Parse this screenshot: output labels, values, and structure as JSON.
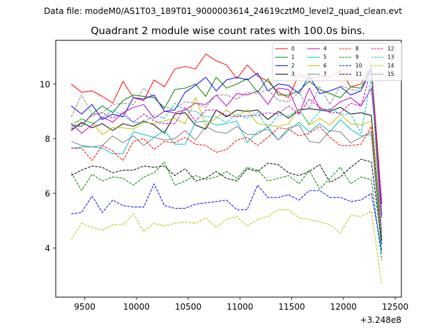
{
  "chart_data": {
    "type": "line",
    "suptitle": "Data file: modeM0/AS1T03_189T01_9000003614_24619cztM0_level2_quad_clean.evt",
    "title": "Quadrant 2 module wise count rates with 100.0s bins.",
    "xlabel": "",
    "ylabel": "",
    "x_offset_label": "+3.248e8",
    "xlim": [
      9220,
      12560
    ],
    "ylim": [
      2.2,
      11.6
    ],
    "xticks": [
      9500,
      10000,
      10500,
      11000,
      11500,
      12000,
      12500
    ],
    "yticks": [
      4,
      6,
      8,
      10
    ],
    "x": [
      9370,
      9470,
      9570,
      9670,
      9770,
      9870,
      9970,
      10070,
      10170,
      10270,
      10370,
      10470,
      10570,
      10670,
      10770,
      10870,
      10970,
      11070,
      11170,
      11270,
      11370,
      11470,
      11570,
      11670,
      11770,
      11870,
      11970,
      12070,
      12170,
      12270,
      12370
    ],
    "legend_position": "top-right",
    "series": [
      {
        "name": "0",
        "color": "#ff0000",
        "dash": "solid",
        "values": [
          10.0,
          9.7,
          9.75,
          9.55,
          9.3,
          10.1,
          9.5,
          9.4,
          10.15,
          9.9,
          10.55,
          10.65,
          10.55,
          11.1,
          10.85,
          10.7,
          10.2,
          10.7,
          10.3,
          10.1,
          9.7,
          9.5,
          10.35,
          10.2,
          10.3,
          10.25,
          10.5,
          9.9,
          10.0,
          10.7,
          5.6
        ]
      },
      {
        "name": "1",
        "color": "#008000",
        "dash": "solid",
        "values": [
          8.5,
          8.45,
          8.9,
          9.2,
          8.95,
          9.4,
          9.6,
          9.55,
          9.5,
          9.1,
          9.8,
          9.85,
          10.0,
          9.55,
          10.25,
          9.85,
          10.0,
          10.2,
          9.7,
          10.2,
          9.6,
          9.6,
          9.75,
          10.1,
          9.8,
          9.65,
          9.5,
          9.9,
          9.85,
          10.6,
          4.3
        ]
      },
      {
        "name": "2",
        "color": "#0000ff",
        "dash": "solid",
        "values": [
          9.2,
          8.9,
          9.25,
          8.7,
          8.9,
          8.8,
          9.5,
          9.45,
          9.6,
          9.0,
          9.05,
          9.7,
          9.95,
          10.25,
          9.75,
          10.15,
          10.25,
          10.15,
          10.4,
          9.75,
          10.0,
          9.95,
          9.65,
          10.3,
          9.65,
          9.75,
          9.9,
          9.6,
          9.75,
          10.55,
          5.2
        ]
      },
      {
        "name": "3",
        "color": "#000000",
        "dash": "solid",
        "values": [
          8.3,
          8.6,
          8.4,
          8.55,
          8.3,
          8.55,
          8.45,
          8.65,
          8.5,
          8.2,
          8.9,
          8.95,
          8.5,
          8.35,
          9.05,
          8.8,
          9.05,
          9.0,
          9.05,
          8.7,
          9.0,
          8.75,
          9.05,
          9.1,
          9.05,
          9.0,
          9.15,
          8.9,
          8.95,
          8.85,
          4.4
        ]
      },
      {
        "name": "4",
        "color": "#bf00bf",
        "dash": "solid",
        "values": [
          8.55,
          8.2,
          8.5,
          8.8,
          8.6,
          8.95,
          9.15,
          9.25,
          8.75,
          9.0,
          8.95,
          9.05,
          9.3,
          9.25,
          9.6,
          9.2,
          9.65,
          9.6,
          9.75,
          9.25,
          9.85,
          9.8,
          8.9,
          9.85,
          9.1,
          9.05,
          9.35,
          9.5,
          9.2,
          9.85,
          5.65
        ]
      },
      {
        "name": "5",
        "color": "#00bfbf",
        "dash": "solid",
        "values": [
          7.65,
          7.7,
          7.7,
          7.65,
          7.45,
          7.45,
          8.25,
          8.15,
          8.05,
          8.3,
          7.8,
          7.8,
          8.6,
          8.65,
          8.5,
          8.55,
          8.65,
          7.85,
          8.25,
          8.35,
          7.95,
          8.3,
          8.6,
          8.25,
          8.55,
          8.25,
          8.7,
          8.35,
          8.1,
          8.15,
          3.8
        ]
      },
      {
        "name": "6",
        "color": "#bfbf00",
        "dash": "solid",
        "values": [
          8.55,
          8.7,
          8.6,
          8.15,
          8.4,
          8.4,
          8.35,
          8.6,
          8.55,
          8.65,
          8.75,
          8.55,
          9.5,
          8.5,
          8.75,
          9.05,
          8.8,
          9.05,
          8.55,
          8.5,
          8.45,
          8.55,
          9.1,
          8.5,
          8.75,
          8.5,
          8.9,
          8.55,
          8.5,
          8.65,
          4.45
        ]
      },
      {
        "name": "7",
        "color": "#808080",
        "dash": "solid",
        "values": [
          7.9,
          7.75,
          7.7,
          7.75,
          8.1,
          7.85,
          8.1,
          7.75,
          8.05,
          7.95,
          8.0,
          8.3,
          7.95,
          8.45,
          8.25,
          8.2,
          8.45,
          8.15,
          8.15,
          8.45,
          7.95,
          8.4,
          8.5,
          7.9,
          7.85,
          8.3,
          8.25,
          7.85,
          8.05,
          8.25,
          4.25
        ]
      },
      {
        "name": "8",
        "color": "#ff0000",
        "dash": "dashed",
        "values": [
          7.65,
          7.65,
          7.2,
          7.75,
          7.55,
          7.2,
          7.9,
          8.0,
          7.6,
          7.9,
          7.85,
          8.05,
          7.8,
          7.75,
          7.5,
          7.6,
          7.95,
          8.05,
          7.75,
          8.05,
          8.4,
          8.35,
          8.1,
          8.2,
          8.45,
          8.05,
          7.75,
          7.75,
          7.8,
          8.45,
          4.3
        ]
      },
      {
        "name": "9",
        "color": "#008000",
        "dash": "dashed",
        "values": [
          6.75,
          6.1,
          6.7,
          6.45,
          6.6,
          6.55,
          6.3,
          6.6,
          6.75,
          7.15,
          6.3,
          6.45,
          6.65,
          6.5,
          6.6,
          6.8,
          6.55,
          6.95,
          6.85,
          6.45,
          6.55,
          6.65,
          6.35,
          6.85,
          6.15,
          6.55,
          6.95,
          6.35,
          6.6,
          6.5,
          3.55
        ]
      },
      {
        "name": "10",
        "color": "#0000ff",
        "dash": "dashed",
        "values": [
          5.25,
          5.3,
          5.9,
          5.3,
          5.75,
          5.55,
          5.5,
          5.5,
          6.35,
          5.55,
          5.45,
          5.45,
          5.6,
          5.65,
          5.7,
          5.75,
          5.4,
          5.4,
          6.3,
          5.85,
          5.85,
          5.95,
          5.75,
          6.1,
          6.1,
          5.85,
          5.85,
          5.7,
          5.75,
          6.0,
          3.9
        ]
      },
      {
        "name": "11",
        "color": "#000000",
        "dash": "dashed",
        "values": [
          6.65,
          6.85,
          7.0,
          6.95,
          6.75,
          6.85,
          6.85,
          7.0,
          6.95,
          7.0,
          6.65,
          6.9,
          6.45,
          6.55,
          6.8,
          6.55,
          6.45,
          6.9,
          6.8,
          7.1,
          7.05,
          6.75,
          6.65,
          6.8,
          7.05,
          6.4,
          6.6,
          6.95,
          7.25,
          7.15,
          4.15
        ]
      },
      {
        "name": "12",
        "color": "#bf00bf",
        "dash": "dashed",
        "values": [
          8.35,
          8.55,
          8.85,
          8.95,
          8.75,
          8.95,
          8.6,
          8.9,
          8.65,
          8.55,
          8.55,
          9.15,
          8.65,
          9.05,
          9.05,
          8.85,
          8.8,
          8.85,
          8.85,
          8.95,
          8.9,
          9.2,
          8.9,
          9.45,
          9.15,
          8.95,
          8.95,
          9.3,
          9.2,
          10.55,
          5.1
        ]
      },
      {
        "name": "13",
        "color": "#00bfbf",
        "dash": "dashed",
        "values": [
          8.4,
          8.75,
          8.55,
          8.75,
          9.05,
          8.85,
          8.6,
          8.6,
          8.85,
          8.75,
          9.3,
          9.05,
          9.0,
          8.8,
          8.8,
          8.6,
          8.9,
          8.75,
          8.95,
          8.4,
          8.85,
          8.85,
          9.05,
          8.55,
          9.0,
          9.1,
          8.9,
          8.9,
          8.2,
          10.25,
          4.35
        ]
      },
      {
        "name": "14",
        "color": "#bfbf00",
        "dash": "dashed",
        "values": [
          4.3,
          4.9,
          4.75,
          4.65,
          4.85,
          4.85,
          5.25,
          4.6,
          4.9,
          4.8,
          4.9,
          4.95,
          4.9,
          5.1,
          4.75,
          5.05,
          5.15,
          4.8,
          5.05,
          5.15,
          5.4,
          5.4,
          5.1,
          5.05,
          4.95,
          4.85,
          4.55,
          5.2,
          5.15,
          5.35,
          2.65
        ]
      },
      {
        "name": "15",
        "color": "#808080",
        "dash": "dashed",
        "values": [
          8.8,
          9.6,
          8.9,
          8.95,
          9.25,
          9.3,
          9.25,
          9.85,
          9.5,
          9.15,
          9.1,
          9.35,
          9.3,
          9.15,
          9.6,
          9.6,
          9.45,
          9.7,
          9.65,
          9.8,
          9.4,
          9.35,
          9.7,
          9.1,
          9.9,
          9.25,
          9.95,
          9.8,
          9.75,
          10.75,
          4.55
        ]
      }
    ]
  }
}
